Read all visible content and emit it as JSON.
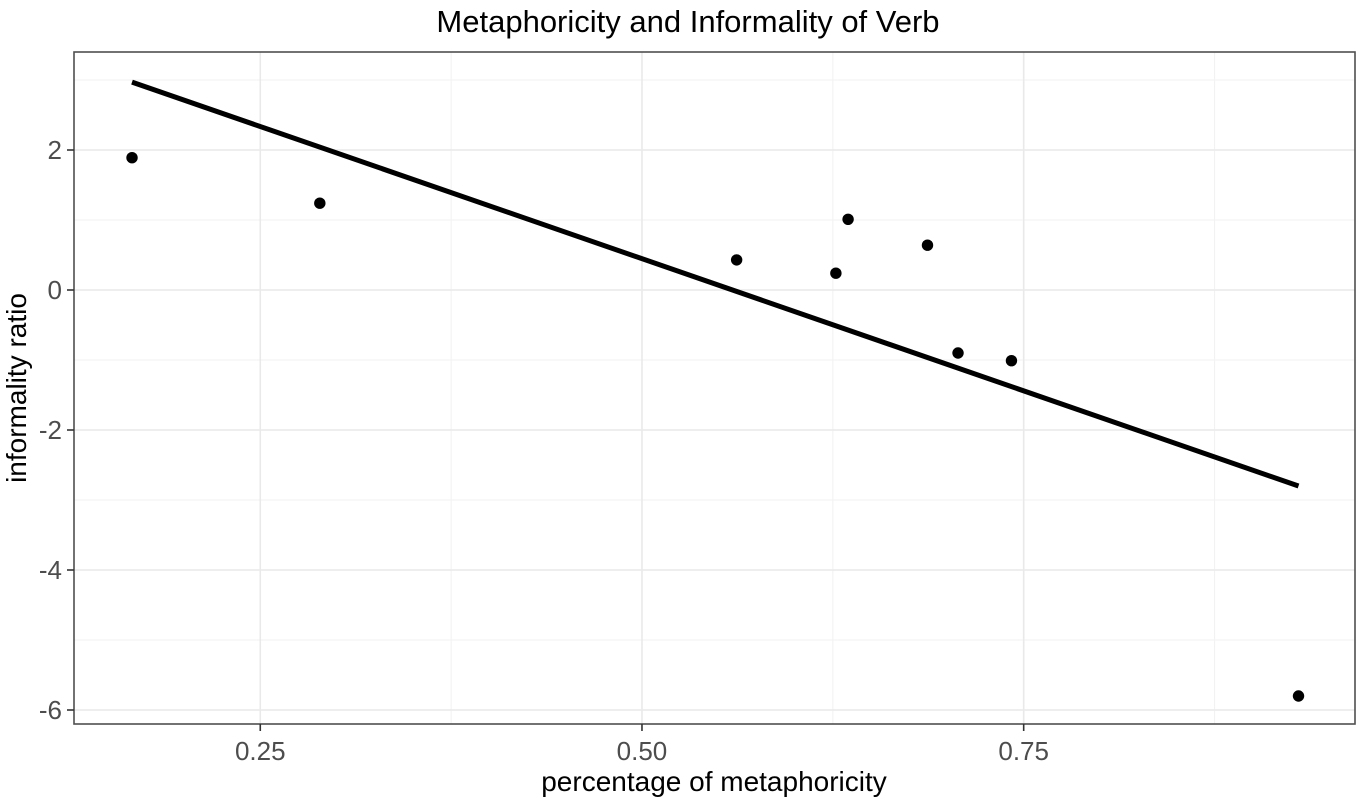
{
  "chart_data": {
    "type": "scatter",
    "title": "Metaphoricity and Informality of Verb",
    "xlabel": "percentage of metaphoricity",
    "ylabel": "informality ratio",
    "xlim": [
      0.128,
      0.967
    ],
    "ylim": [
      -6.2,
      3.4
    ],
    "x_ticks": [
      0.25,
      0.5,
      0.75
    ],
    "x_tick_labels": [
      "0.25",
      "0.50",
      "0.75"
    ],
    "y_ticks": [
      2,
      0,
      -2,
      -4,
      -6
    ],
    "y_tick_labels": [
      "2",
      "0",
      "-2",
      "-4",
      "-6"
    ],
    "x_minor_gridlines": [
      0.375,
      0.625,
      0.875
    ],
    "y_minor_gridlines": [
      3,
      1,
      -1,
      -3,
      -5
    ],
    "grid": true,
    "legend": false,
    "points": [
      {
        "x": 0.166,
        "y": 1.89
      },
      {
        "x": 0.289,
        "y": 1.24
      },
      {
        "x": 0.562,
        "y": 0.43
      },
      {
        "x": 0.627,
        "y": 0.24
      },
      {
        "x": 0.635,
        "y": 1.01
      },
      {
        "x": 0.687,
        "y": 0.64
      },
      {
        "x": 0.707,
        "y": -0.9
      },
      {
        "x": 0.742,
        "y": -1.01
      },
      {
        "x": 0.93,
        "y": -5.8
      }
    ],
    "trend_line": {
      "x_start": 0.166,
      "y_start": 2.97,
      "x_end": 0.93,
      "y_end": -2.8
    },
    "colors": {
      "point": "#000000",
      "trend": "#000000",
      "grid_major": "#e9e9e9",
      "grid_minor": "#f2f2f2",
      "panel_border": "#4f4f4f",
      "tick_mark": "#333333",
      "tick_label": "#4d4d4d",
      "text": "#000000",
      "background": "#ffffff"
    }
  }
}
